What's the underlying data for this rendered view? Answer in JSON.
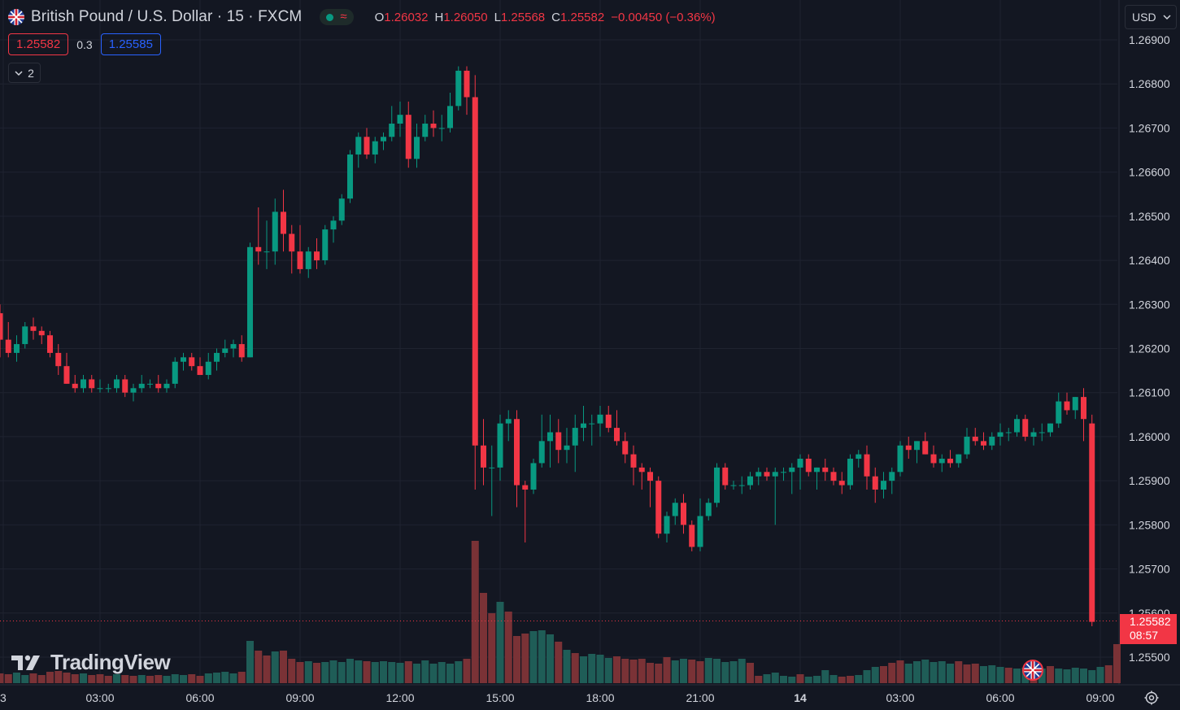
{
  "header": {
    "flag_icon": "uk-us-flag-icon",
    "title": "British Pound / U.S. Dollar · 15 · FXCM",
    "status_icon": "market-open-icon",
    "delay_icon": "wave-icon",
    "delay_symbol": "≈",
    "ohlc": {
      "o_label": "O",
      "o_value": "1.26032",
      "h_label": "H",
      "h_value": "1.26050",
      "l_label": "L",
      "l_value": "1.25568",
      "c_label": "C",
      "c_value": "1.25582",
      "change": "−0.00450 (−0.36%)"
    }
  },
  "trade": {
    "bid": "1.25582",
    "spread": "0.3",
    "ask": "1.25585"
  },
  "indicators_toggle": {
    "icon": "chevron-down-icon",
    "count": "2"
  },
  "currency": {
    "selected": "USD",
    "icon": "chevron-down-icon"
  },
  "price_tag": {
    "price": "1.25582",
    "countdown": "08:57"
  },
  "logo": {
    "text": "TradingView",
    "icon": "tradingview-logo-icon"
  },
  "settings": {
    "icon": "gear-icon"
  },
  "colors": {
    "background": "#131722",
    "grid": "#1f2330",
    "up": "#089981",
    "down": "#f23645",
    "up_volume": "#1f5d57",
    "down_volume": "#7a3236",
    "text": "#d1d4dc"
  },
  "chart_data": {
    "type": "candlestick",
    "title": "British Pound / U.S. Dollar · 15 · FXCM",
    "ylim": [
      1.2546,
      1.2694
    ],
    "y_ticks": [
      "1.25500",
      "1.25600",
      "1.25700",
      "1.25800",
      "1.25900",
      "1.26000",
      "1.26100",
      "1.26200",
      "1.26300",
      "1.26400",
      "1.26500",
      "1.26600",
      "1.26700",
      "1.26800",
      "1.26900"
    ],
    "x_ticks": [
      "3",
      "03:00",
      "06:00",
      "09:00",
      "12:00",
      "15:00",
      "18:00",
      "21:00",
      "14",
      "03:00",
      "06:00",
      "09:00"
    ],
    "bar_interval": "15m",
    "candles": [
      [
        1.2628,
        1.263,
        1.2618,
        1.2622
      ],
      [
        1.2622,
        1.2626,
        1.2618,
        1.2619
      ],
      [
        1.2619,
        1.2623,
        1.2617,
        1.2621
      ],
      [
        1.2621,
        1.2626,
        1.262,
        1.2625
      ],
      [
        1.2625,
        1.2627,
        1.2622,
        1.2624
      ],
      [
        1.2624,
        1.2625,
        1.2621,
        1.2623
      ],
      [
        1.2623,
        1.2624,
        1.2618,
        1.2619
      ],
      [
        1.2619,
        1.2621,
        1.2614,
        1.2616
      ],
      [
        1.2616,
        1.2619,
        1.2612,
        1.2612
      ],
      [
        1.2612,
        1.2614,
        1.261,
        1.2611
      ],
      [
        1.2611,
        1.2614,
        1.261,
        1.2613
      ],
      [
        1.2613,
        1.2614,
        1.261,
        1.2611
      ],
      [
        1.2611,
        1.2613,
        1.261,
        1.2611
      ],
      [
        1.2611,
        1.2612,
        1.261,
        1.2611
      ],
      [
        1.2611,
        1.2614,
        1.261,
        1.2613
      ],
      [
        1.2613,
        1.2614,
        1.2609,
        1.261
      ],
      [
        1.261,
        1.2612,
        1.2608,
        1.2611
      ],
      [
        1.2611,
        1.2614,
        1.261,
        1.2612
      ],
      [
        1.2612,
        1.2613,
        1.2611,
        1.2612
      ],
      [
        1.2612,
        1.2614,
        1.261,
        1.2611
      ],
      [
        1.2611,
        1.2613,
        1.261,
        1.2612
      ],
      [
        1.2612,
        1.2618,
        1.2611,
        1.2617
      ],
      [
        1.2617,
        1.2619,
        1.2615,
        1.2618
      ],
      [
        1.2618,
        1.2619,
        1.2615,
        1.2616
      ],
      [
        1.2616,
        1.2618,
        1.2614,
        1.2614
      ],
      [
        1.2614,
        1.2619,
        1.2613,
        1.2617
      ],
      [
        1.2617,
        1.262,
        1.2615,
        1.2619
      ],
      [
        1.2619,
        1.2622,
        1.2618,
        1.262
      ],
      [
        1.262,
        1.2622,
        1.2618,
        1.2621
      ],
      [
        1.2621,
        1.2623,
        1.2617,
        1.2618
      ],
      [
        1.2618,
        1.2644,
        1.2618,
        1.2643
      ],
      [
        1.2643,
        1.2652,
        1.2639,
        1.2642
      ],
      [
        1.2642,
        1.2649,
        1.2638,
        1.2642
      ],
      [
        1.2642,
        1.2654,
        1.2639,
        1.2651
      ],
      [
        1.2651,
        1.2656,
        1.2642,
        1.2646
      ],
      [
        1.2646,
        1.2648,
        1.2637,
        1.2642
      ],
      [
        1.2642,
        1.2648,
        1.2637,
        1.2638
      ],
      [
        1.2638,
        1.2643,
        1.2636,
        1.2642
      ],
      [
        1.2642,
        1.2645,
        1.2638,
        1.264
      ],
      [
        1.264,
        1.2648,
        1.2639,
        1.2647
      ],
      [
        1.2647,
        1.265,
        1.2644,
        1.2649
      ],
      [
        1.2649,
        1.2655,
        1.2648,
        1.2654
      ],
      [
        1.2654,
        1.2665,
        1.2653,
        1.2664
      ],
      [
        1.2664,
        1.2669,
        1.2661,
        1.2668
      ],
      [
        1.2668,
        1.267,
        1.2663,
        1.2664
      ],
      [
        1.2664,
        1.2668,
        1.2662,
        1.2667
      ],
      [
        1.2667,
        1.2669,
        1.2665,
        1.2668
      ],
      [
        1.2668,
        1.2675,
        1.2667,
        1.2671
      ],
      [
        1.2671,
        1.2676,
        1.2668,
        1.2673
      ],
      [
        1.2673,
        1.2676,
        1.2661,
        1.2663
      ],
      [
        1.2663,
        1.2671,
        1.2661,
        1.2668
      ],
      [
        1.2668,
        1.2673,
        1.2667,
        1.2671
      ],
      [
        1.2671,
        1.2674,
        1.2668,
        1.267
      ],
      [
        1.267,
        1.2673,
        1.2667,
        1.267
      ],
      [
        1.267,
        1.2678,
        1.2669,
        1.2675
      ],
      [
        1.2675,
        1.2684,
        1.2674,
        1.2683
      ],
      [
        1.2683,
        1.2684,
        1.2673,
        1.2677
      ],
      [
        1.2677,
        1.2682,
        1.2588,
        1.2598
      ],
      [
        1.2598,
        1.2604,
        1.2589,
        1.2593
      ],
      [
        1.2593,
        1.2598,
        1.2582,
        1.2593
      ],
      [
        1.2593,
        1.2605,
        1.259,
        1.2603
      ],
      [
        1.2603,
        1.2606,
        1.2599,
        1.2604
      ],
      [
        1.2604,
        1.2606,
        1.2584,
        1.2589
      ],
      [
        1.2589,
        1.259,
        1.2576,
        1.2588
      ],
      [
        1.2588,
        1.2595,
        1.2587,
        1.2594
      ],
      [
        1.2594,
        1.2605,
        1.2593,
        1.2599
      ],
      [
        1.2599,
        1.2605,
        1.2593,
        1.2601
      ],
      [
        1.2601,
        1.2604,
        1.2594,
        1.2597
      ],
      [
        1.2597,
        1.2602,
        1.2594,
        1.2598
      ],
      [
        1.2598,
        1.2605,
        1.2592,
        1.2602
      ],
      [
        1.2602,
        1.2607,
        1.2599,
        1.2603
      ],
      [
        1.2603,
        1.2605,
        1.2598,
        1.2603
      ],
      [
        1.2603,
        1.2607,
        1.26,
        1.2605
      ],
      [
        1.2605,
        1.2607,
        1.2601,
        1.2602
      ],
      [
        1.2602,
        1.2606,
        1.2598,
        1.2599
      ],
      [
        1.2599,
        1.2601,
        1.2594,
        1.2596
      ],
      [
        1.2596,
        1.2598,
        1.2589,
        1.2593
      ],
      [
        1.2593,
        1.2594,
        1.2588,
        1.2592
      ],
      [
        1.2592,
        1.2593,
        1.2584,
        1.259
      ],
      [
        1.259,
        1.2591,
        1.2577,
        1.2578
      ],
      [
        1.2578,
        1.2583,
        1.2576,
        1.2582
      ],
      [
        1.2582,
        1.2586,
        1.258,
        1.2585
      ],
      [
        1.2585,
        1.2587,
        1.2578,
        1.258
      ],
      [
        1.258,
        1.2581,
        1.2574,
        1.2575
      ],
      [
        1.2575,
        1.2586,
        1.2574,
        1.2582
      ],
      [
        1.2582,
        1.2586,
        1.2581,
        1.2585
      ],
      [
        1.2585,
        1.2594,
        1.2584,
        1.2593
      ],
      [
        1.2593,
        1.2594,
        1.2588,
        1.2589
      ],
      [
        1.2589,
        1.259,
        1.2588,
        1.2589
      ],
      [
        1.2589,
        1.2591,
        1.2587,
        1.2589
      ],
      [
        1.2589,
        1.2592,
        1.2588,
        1.2591
      ],
      [
        1.2591,
        1.2593,
        1.2589,
        1.2592
      ],
      [
        1.2592,
        1.2593,
        1.259,
        1.2591
      ],
      [
        1.2591,
        1.2593,
        1.258,
        1.2592
      ],
      [
        1.2592,
        1.2593,
        1.259,
        1.2592
      ],
      [
        1.2592,
        1.2594,
        1.2587,
        1.2593
      ],
      [
        1.2593,
        1.2596,
        1.2588,
        1.2595
      ],
      [
        1.2595,
        1.2596,
        1.2591,
        1.2592
      ],
      [
        1.2592,
        1.2593,
        1.2588,
        1.2593
      ],
      [
        1.2593,
        1.2595,
        1.259,
        1.2592
      ],
      [
        1.2592,
        1.2593,
        1.2589,
        1.259
      ],
      [
        1.259,
        1.2592,
        1.2587,
        1.2589
      ],
      [
        1.2589,
        1.2596,
        1.2588,
        1.2595
      ],
      [
        1.2595,
        1.2597,
        1.2593,
        1.2596
      ],
      [
        1.2596,
        1.2598,
        1.2588,
        1.2591
      ],
      [
        1.2591,
        1.2593,
        1.2585,
        1.2588
      ],
      [
        1.2588,
        1.2592,
        1.2586,
        1.259
      ],
      [
        1.259,
        1.2593,
        1.2587,
        1.2592
      ],
      [
        1.2592,
        1.2599,
        1.2591,
        1.2598
      ],
      [
        1.2598,
        1.26,
        1.2595,
        1.2597
      ],
      [
        1.2597,
        1.2599,
        1.2594,
        1.2599
      ],
      [
        1.2599,
        1.2601,
        1.2596,
        1.2596
      ],
      [
        1.2596,
        1.2598,
        1.2593,
        1.2594
      ],
      [
        1.2594,
        1.2596,
        1.2592,
        1.2595
      ],
      [
        1.2595,
        1.2597,
        1.2593,
        1.2594
      ],
      [
        1.2594,
        1.2596,
        1.2593,
        1.2596
      ],
      [
        1.2596,
        1.2602,
        1.2595,
        1.26
      ],
      [
        1.26,
        1.2602,
        1.2598,
        1.2599
      ],
      [
        1.2599,
        1.2601,
        1.2597,
        1.2598
      ],
      [
        1.2598,
        1.2601,
        1.2597,
        1.26
      ],
      [
        1.26,
        1.2603,
        1.2598,
        1.2601
      ],
      [
        1.2601,
        1.2602,
        1.2599,
        1.2601
      ],
      [
        1.2601,
        1.2605,
        1.26,
        1.2604
      ],
      [
        1.2604,
        1.2605,
        1.2599,
        1.26
      ],
      [
        1.26,
        1.2602,
        1.2598,
        1.2601
      ],
      [
        1.2601,
        1.2603,
        1.2599,
        1.2601
      ],
      [
        1.2601,
        1.2603,
        1.26,
        1.2603
      ],
      [
        1.2603,
        1.261,
        1.2602,
        1.2608
      ],
      [
        1.2608,
        1.261,
        1.2605,
        1.2606
      ],
      [
        1.2606,
        1.2609,
        1.2604,
        1.2609
      ],
      [
        1.2609,
        1.2611,
        1.2599,
        1.2604
      ],
      [
        1.2603,
        1.2605,
        1.2557,
        1.2558
      ]
    ],
    "volume": [
      [
        12,
        "d"
      ],
      [
        11,
        "d"
      ],
      [
        13,
        "u"
      ],
      [
        10,
        "u"
      ],
      [
        12,
        "d"
      ],
      [
        10,
        "d"
      ],
      [
        14,
        "d"
      ],
      [
        15,
        "d"
      ],
      [
        13,
        "d"
      ],
      [
        11,
        "d"
      ],
      [
        12,
        "u"
      ],
      [
        10,
        "d"
      ],
      [
        11,
        "d"
      ],
      [
        9,
        "d"
      ],
      [
        11,
        "u"
      ],
      [
        10,
        "d"
      ],
      [
        9,
        "d"
      ],
      [
        10,
        "u"
      ],
      [
        9,
        "d"
      ],
      [
        10,
        "d"
      ],
      [
        9,
        "u"
      ],
      [
        11,
        "u"
      ],
      [
        10,
        "u"
      ],
      [
        11,
        "d"
      ],
      [
        9,
        "d"
      ],
      [
        12,
        "u"
      ],
      [
        13,
        "u"
      ],
      [
        14,
        "u"
      ],
      [
        12,
        "u"
      ],
      [
        14,
        "d"
      ],
      [
        52,
        "u"
      ],
      [
        40,
        "d"
      ],
      [
        34,
        "d"
      ],
      [
        39,
        "u"
      ],
      [
        40,
        "d"
      ],
      [
        30,
        "d"
      ],
      [
        26,
        "d"
      ],
      [
        27,
        "u"
      ],
      [
        25,
        "d"
      ],
      [
        26,
        "u"
      ],
      [
        28,
        "u"
      ],
      [
        26,
        "u"
      ],
      [
        30,
        "u"
      ],
      [
        28,
        "u"
      ],
      [
        27,
        "d"
      ],
      [
        26,
        "u"
      ],
      [
        27,
        "u"
      ],
      [
        26,
        "u"
      ],
      [
        25,
        "u"
      ],
      [
        27,
        "d"
      ],
      [
        24,
        "u"
      ],
      [
        28,
        "u"
      ],
      [
        24,
        "u"
      ],
      [
        26,
        "u"
      ],
      [
        24,
        "u"
      ],
      [
        27,
        "u"
      ],
      [
        30,
        "d"
      ],
      [
        175,
        "d"
      ],
      [
        111,
        "d"
      ],
      [
        86,
        "d"
      ],
      [
        100,
        "u"
      ],
      [
        88,
        "d"
      ],
      [
        58,
        "d"
      ],
      [
        61,
        "d"
      ],
      [
        64,
        "u"
      ],
      [
        65,
        "u"
      ],
      [
        60,
        "u"
      ],
      [
        51,
        "d"
      ],
      [
        41,
        "u"
      ],
      [
        37,
        "d"
      ],
      [
        33,
        "u"
      ],
      [
        36,
        "u"
      ],
      [
        35,
        "u"
      ],
      [
        31,
        "u"
      ],
      [
        33,
        "d"
      ],
      [
        30,
        "d"
      ],
      [
        29,
        "d"
      ],
      [
        30,
        "d"
      ],
      [
        25,
        "d"
      ],
      [
        24,
        "d"
      ],
      [
        32,
        "d"
      ],
      [
        28,
        "u"
      ],
      [
        30,
        "u"
      ],
      [
        29,
        "d"
      ],
      [
        27,
        "d"
      ],
      [
        31,
        "u"
      ],
      [
        30,
        "u"
      ],
      [
        26,
        "u"
      ],
      [
        27,
        "u"
      ],
      [
        30,
        "u"
      ],
      [
        25,
        "d"
      ],
      [
        9,
        "d"
      ],
      [
        11,
        "u"
      ],
      [
        13,
        "u"
      ],
      [
        9,
        "u"
      ],
      [
        8,
        "u"
      ],
      [
        11,
        "d"
      ],
      [
        8,
        "u"
      ],
      [
        9,
        "u"
      ],
      [
        16,
        "u"
      ],
      [
        10,
        "u"
      ],
      [
        8,
        "d"
      ],
      [
        9,
        "d"
      ],
      [
        10,
        "u"
      ],
      [
        16,
        "u"
      ],
      [
        20,
        "u"
      ],
      [
        21,
        "d"
      ],
      [
        25,
        "d"
      ],
      [
        28,
        "d"
      ],
      [
        24,
        "u"
      ],
      [
        27,
        "u"
      ],
      [
        29,
        "u"
      ],
      [
        26,
        "u"
      ],
      [
        27,
        "u"
      ],
      [
        24,
        "u"
      ],
      [
        27,
        "d"
      ],
      [
        23,
        "d"
      ],
      [
        24,
        "d"
      ],
      [
        21,
        "u"
      ],
      [
        22,
        "u"
      ],
      [
        20,
        "u"
      ],
      [
        19,
        "d"
      ],
      [
        18,
        "u"
      ],
      [
        19,
        "u"
      ],
      [
        20,
        "d"
      ],
      [
        18,
        "u"
      ],
      [
        21,
        "d"
      ],
      [
        18,
        "u"
      ],
      [
        17,
        "u"
      ],
      [
        19,
        "u"
      ],
      [
        18,
        "u"
      ],
      [
        16,
        "u"
      ],
      [
        20,
        "u"
      ],
      [
        22,
        "d"
      ],
      [
        48,
        "d"
      ]
    ]
  }
}
